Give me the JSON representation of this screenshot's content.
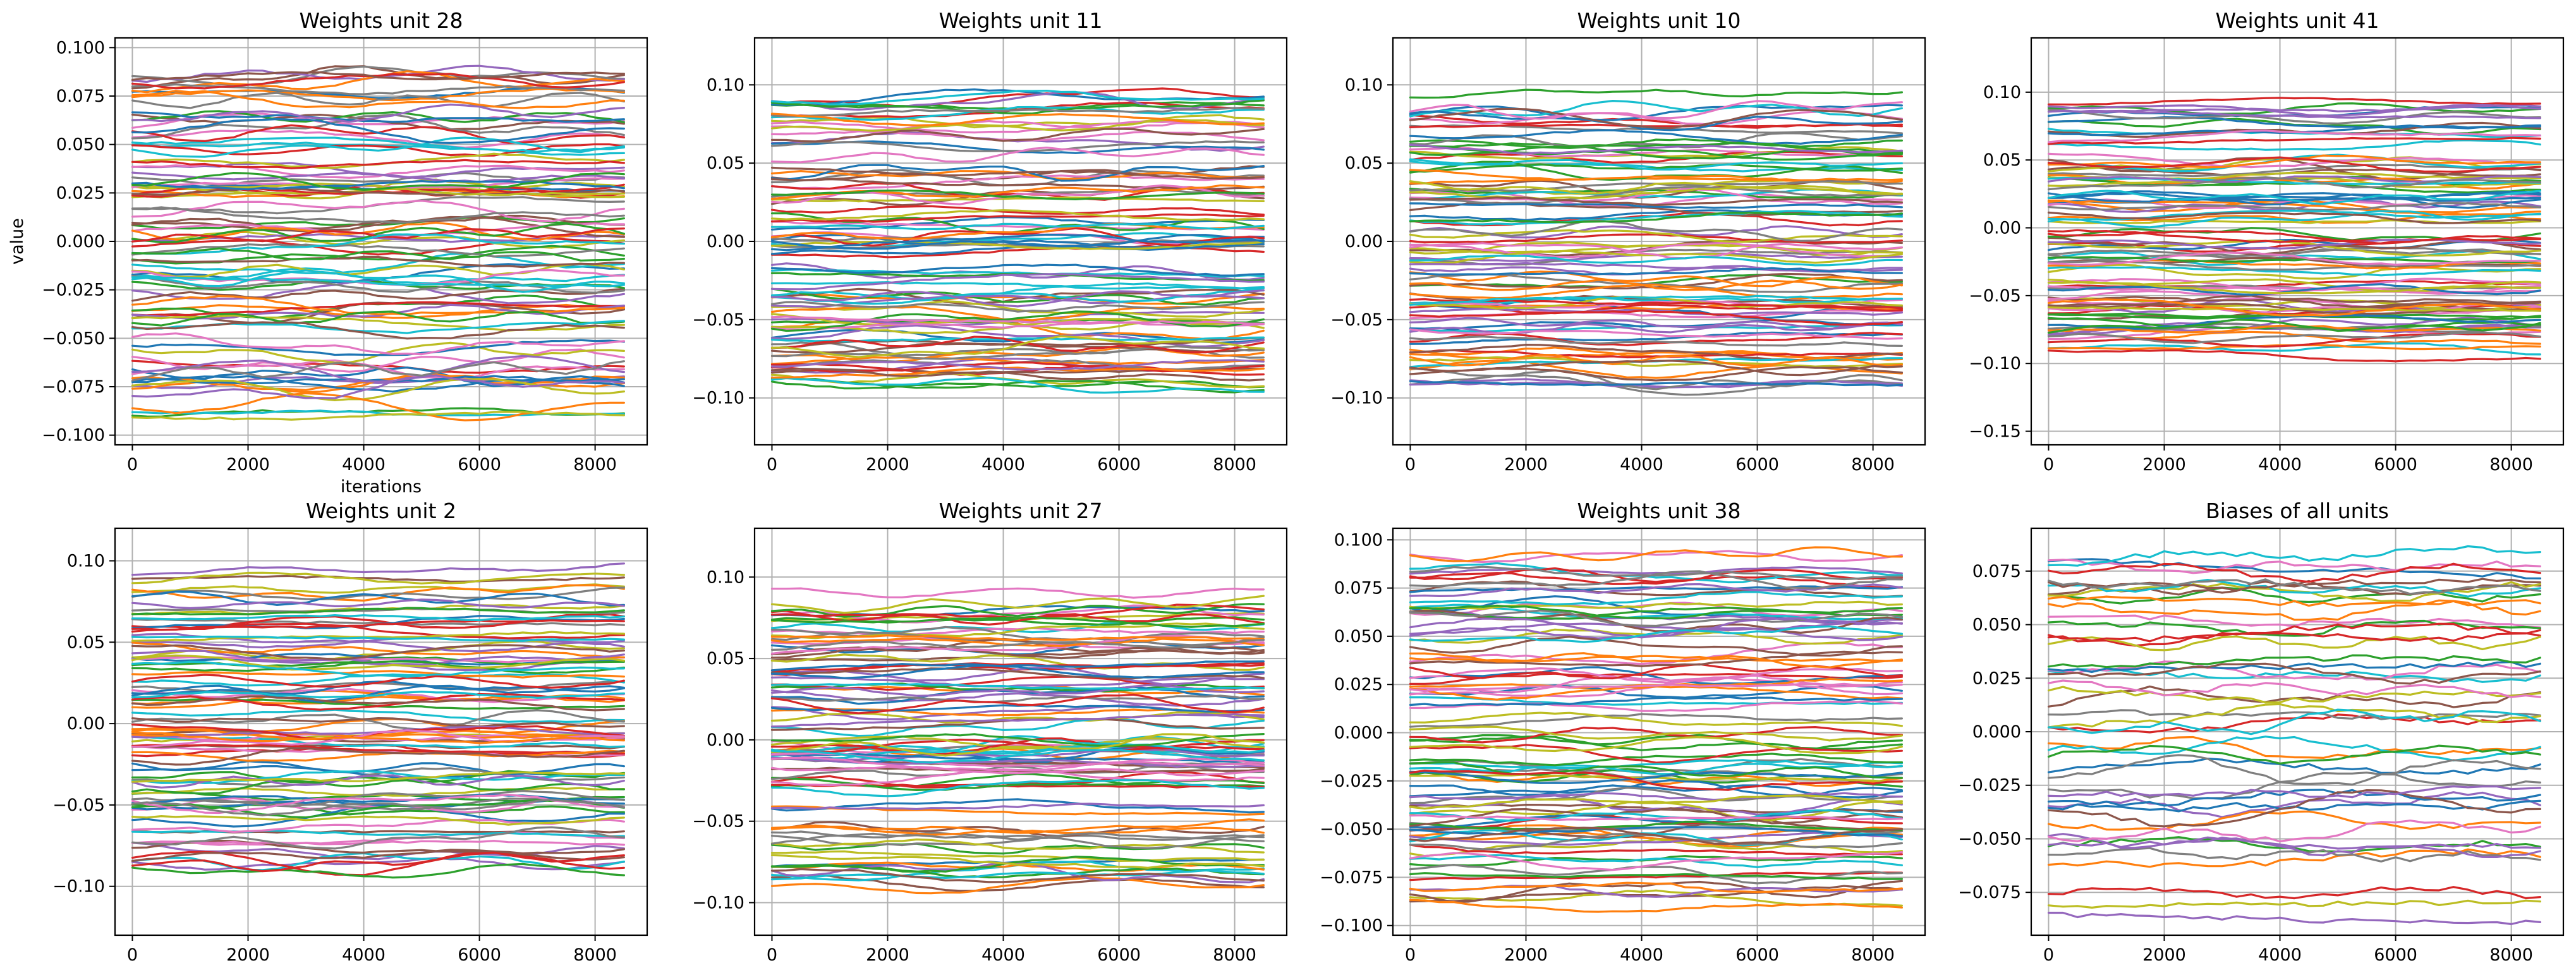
{
  "figure": {
    "series_colors": [
      "#1f77b4",
      "#ff7f0e",
      "#2ca02c",
      "#d62728",
      "#9467bd",
      "#8c564b",
      "#e377c2",
      "#7f7f7f",
      "#bcbd22",
      "#17becf"
    ],
    "grid": true,
    "x_axis_label": "iterations",
    "y_axis_label": "value"
  },
  "chart_data": [
    {
      "type": "line",
      "title": "Weights unit 28",
      "n_series": 100,
      "xlim": [
        -300,
        8900
      ],
      "ylim": [
        -0.105,
        0.105
      ],
      "xticks": [
        0,
        2000,
        4000,
        6000,
        8000
      ],
      "yticks": [
        -0.1,
        -0.075,
        -0.05,
        -0.025,
        0.0,
        0.025,
        0.05,
        0.075,
        0.1
      ],
      "ytick_labels": [
        "−0.100",
        "−0.075",
        "−0.050",
        "−0.025",
        "0.000",
        "0.025",
        "0.050",
        "0.075",
        "0.100"
      ],
      "x_range": [
        0,
        8500
      ],
      "start_range": [
        -0.092,
        0.092
      ],
      "end_range": [
        -0.098,
        0.096
      ],
      "jitter": 0.0005,
      "xlabel": "iterations",
      "ylabel": "value"
    },
    {
      "type": "line",
      "title": "Weights unit 11",
      "n_series": 100,
      "xlim": [
        -300,
        8900
      ],
      "ylim": [
        -0.13,
        0.13
      ],
      "xticks": [
        0,
        2000,
        4000,
        6000,
        8000
      ],
      "yticks": [
        -0.1,
        -0.05,
        0.0,
        0.05,
        0.1
      ],
      "ytick_labels": [
        "−0.10",
        "−0.05",
        "0.00",
        "0.05",
        "0.10"
      ],
      "x_range": [
        0,
        8500
      ],
      "start_range": [
        -0.092,
        0.092
      ],
      "end_range": [
        -0.121,
        0.116
      ],
      "jitter": 0.0005,
      "xlabel": "",
      "ylabel": ""
    },
    {
      "type": "line",
      "title": "Weights unit 10",
      "n_series": 100,
      "xlim": [
        -300,
        8900
      ],
      "ylim": [
        -0.13,
        0.13
      ],
      "xticks": [
        0,
        2000,
        4000,
        6000,
        8000
      ],
      "yticks": [
        -0.1,
        -0.05,
        0.0,
        0.05,
        0.1
      ],
      "ytick_labels": [
        "−0.10",
        "−0.05",
        "0.00",
        "0.05",
        "0.10"
      ],
      "x_range": [
        0,
        8500
      ],
      "start_range": [
        -0.092,
        0.092
      ],
      "end_range": [
        -0.123,
        0.109
      ],
      "jitter": 0.0005,
      "xlabel": "",
      "ylabel": ""
    },
    {
      "type": "line",
      "title": "Weights unit 41",
      "n_series": 100,
      "xlim": [
        -300,
        8900
      ],
      "ylim": [
        -0.16,
        0.14
      ],
      "xticks": [
        0,
        2000,
        4000,
        6000,
        8000
      ],
      "yticks": [
        -0.15,
        -0.1,
        -0.05,
        0.0,
        0.05,
        0.1
      ],
      "ytick_labels": [
        "−0.15",
        "−0.10",
        "−0.05",
        "0.00",
        "0.05",
        "0.10"
      ],
      "x_range": [
        0,
        8500
      ],
      "start_range": [
        -0.092,
        0.092
      ],
      "end_range": [
        -0.146,
        0.129
      ],
      "jitter": 0.0005,
      "xlabel": "",
      "ylabel": ""
    },
    {
      "type": "line",
      "title": "Weights unit 2",
      "n_series": 100,
      "xlim": [
        -300,
        8900
      ],
      "ylim": [
        -0.13,
        0.12
      ],
      "xticks": [
        0,
        2000,
        4000,
        6000,
        8000
      ],
      "yticks": [
        -0.1,
        -0.05,
        0.0,
        0.05,
        0.1
      ],
      "ytick_labels": [
        "−0.10",
        "−0.05",
        "0.00",
        "0.05",
        "0.10"
      ],
      "x_range": [
        0,
        8500
      ],
      "start_range": [
        -0.092,
        0.092
      ],
      "end_range": [
        -0.118,
        0.113
      ],
      "jitter": 0.0005,
      "xlabel": "",
      "ylabel": ""
    },
    {
      "type": "line",
      "title": "Weights unit 27",
      "n_series": 100,
      "xlim": [
        -300,
        8900
      ],
      "ylim": [
        -0.12,
        0.13
      ],
      "xticks": [
        0,
        2000,
        4000,
        6000,
        8000
      ],
      "yticks": [
        -0.1,
        -0.05,
        0.0,
        0.05,
        0.1
      ],
      "ytick_labels": [
        "−0.10",
        "−0.05",
        "0.00",
        "0.05",
        "0.10"
      ],
      "x_range": [
        0,
        8500
      ],
      "start_range": [
        -0.092,
        0.092
      ],
      "end_range": [
        -0.111,
        0.118
      ],
      "jitter": 0.0005,
      "xlabel": "",
      "ylabel": ""
    },
    {
      "type": "line",
      "title": "Weights unit 38",
      "n_series": 100,
      "xlim": [
        -300,
        8900
      ],
      "ylim": [
        -0.105,
        0.106
      ],
      "xticks": [
        0,
        2000,
        4000,
        6000,
        8000
      ],
      "yticks": [
        -0.1,
        -0.075,
        -0.05,
        -0.025,
        0.0,
        0.025,
        0.05,
        0.075,
        0.1
      ],
      "ytick_labels": [
        "−0.100",
        "−0.075",
        "−0.050",
        "−0.025",
        "0.000",
        "0.025",
        "0.050",
        "0.075",
        "0.100"
      ],
      "x_range": [
        0,
        8500
      ],
      "start_range": [
        -0.092,
        0.092
      ],
      "end_range": [
        -0.097,
        0.1
      ],
      "jitter": 0.0005,
      "xlabel": "",
      "ylabel": ""
    },
    {
      "type": "line",
      "title": "Biases of all units",
      "n_series": 50,
      "xlim": [
        -300,
        8900
      ],
      "ylim": [
        -0.095,
        0.095
      ],
      "xticks": [
        0,
        2000,
        4000,
        6000,
        8000
      ],
      "yticks": [
        -0.075,
        -0.05,
        -0.025,
        0.0,
        0.025,
        0.05,
        0.075
      ],
      "ytick_labels": [
        "−0.075",
        "−0.050",
        "−0.025",
        "0.000",
        "0.025",
        "0.050",
        "0.075"
      ],
      "x_range": [
        0,
        8500
      ],
      "start_range": [
        -0.09,
        0.088
      ],
      "end_range": [
        -0.09,
        0.088
      ],
      "jitter": 0.0012,
      "xlabel": "",
      "ylabel": ""
    }
  ]
}
